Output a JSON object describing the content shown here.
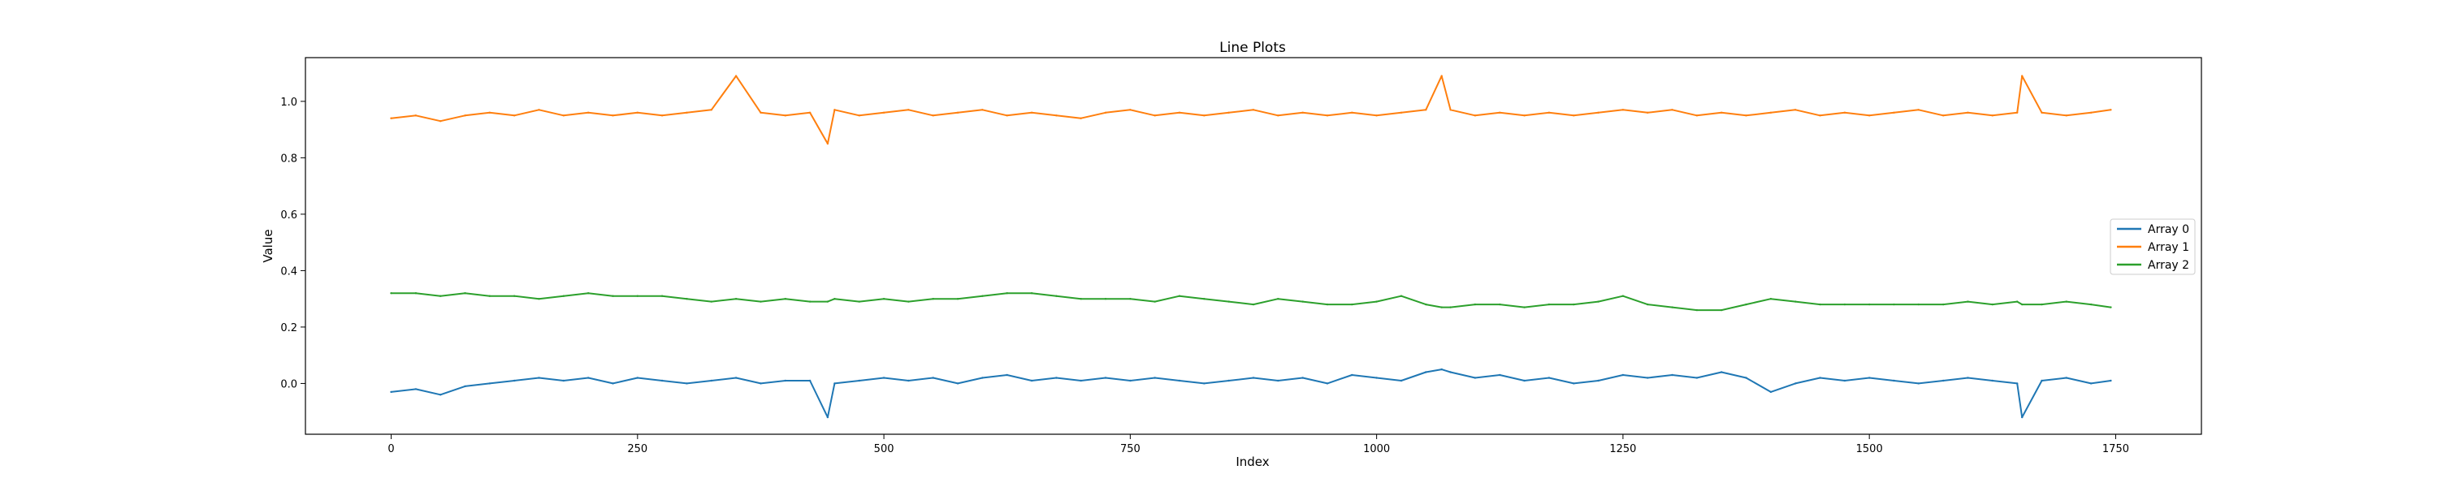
{
  "chart_data": {
    "type": "line",
    "title": "Line Plots",
    "xlabel": "Index",
    "ylabel": "Value",
    "xlim": [
      -87,
      1837
    ],
    "ylim": [
      -0.18,
      1.155
    ],
    "x_ticks": [
      0,
      250,
      500,
      750,
      1000,
      1250,
      1500,
      1750
    ],
    "x_tick_labels": [
      "0",
      "250",
      "500",
      "750",
      "1000",
      "1250",
      "1500",
      "1750"
    ],
    "y_ticks": [
      0.0,
      0.2,
      0.4,
      0.6,
      0.8,
      1.0
    ],
    "y_tick_labels": [
      "0.0",
      "0.2",
      "0.4",
      "0.6",
      "0.8",
      "1.0"
    ],
    "grid": false,
    "legend_position": "center-right",
    "x": [
      0,
      25,
      50,
      75,
      100,
      125,
      150,
      175,
      200,
      225,
      250,
      275,
      300,
      325,
      350,
      375,
      400,
      425,
      443,
      450,
      475,
      500,
      525,
      550,
      575,
      600,
      625,
      650,
      675,
      700,
      725,
      750,
      775,
      800,
      825,
      850,
      875,
      900,
      925,
      950,
      975,
      1000,
      1025,
      1050,
      1066,
      1075,
      1100,
      1125,
      1150,
      1175,
      1200,
      1225,
      1250,
      1275,
      1300,
      1325,
      1350,
      1375,
      1400,
      1425,
      1450,
      1475,
      1500,
      1525,
      1550,
      1575,
      1600,
      1625,
      1650,
      1655,
      1675,
      1700,
      1725,
      1745
    ],
    "series": [
      {
        "name": "Array 0",
        "color": "#1f77b4",
        "values": [
          -0.03,
          -0.02,
          -0.04,
          -0.01,
          0.0,
          0.01,
          0.02,
          0.01,
          0.02,
          0.0,
          0.02,
          0.01,
          0.0,
          0.01,
          0.02,
          0.0,
          0.01,
          0.01,
          -0.12,
          0.0,
          0.01,
          0.02,
          0.01,
          0.02,
          0.0,
          0.02,
          0.03,
          0.01,
          0.02,
          0.01,
          0.02,
          0.01,
          0.02,
          0.01,
          0.0,
          0.01,
          0.02,
          0.01,
          0.02,
          0.0,
          0.03,
          0.02,
          0.01,
          0.04,
          0.05,
          0.04,
          0.02,
          0.03,
          0.01,
          0.02,
          0.0,
          0.01,
          0.03,
          0.02,
          0.03,
          0.02,
          0.04,
          0.02,
          -0.03,
          0.0,
          0.02,
          0.01,
          0.02,
          0.01,
          0.0,
          0.01,
          0.02,
          0.01,
          0.0,
          -0.12,
          0.01,
          0.02,
          0.0,
          0.01
        ]
      },
      {
        "name": "Array 1",
        "color": "#ff7f0e",
        "values": [
          0.94,
          0.95,
          0.93,
          0.95,
          0.96,
          0.95,
          0.97,
          0.95,
          0.96,
          0.95,
          0.96,
          0.95,
          0.96,
          0.97,
          1.09,
          0.96,
          0.95,
          0.96,
          0.85,
          0.97,
          0.95,
          0.96,
          0.97,
          0.95,
          0.96,
          0.97,
          0.95,
          0.96,
          0.95,
          0.94,
          0.96,
          0.97,
          0.95,
          0.96,
          0.95,
          0.96,
          0.97,
          0.95,
          0.96,
          0.95,
          0.96,
          0.95,
          0.96,
          0.97,
          1.09,
          0.97,
          0.95,
          0.96,
          0.95,
          0.96,
          0.95,
          0.96,
          0.97,
          0.96,
          0.97,
          0.95,
          0.96,
          0.95,
          0.96,
          0.97,
          0.95,
          0.96,
          0.95,
          0.96,
          0.97,
          0.95,
          0.96,
          0.95,
          0.96,
          1.09,
          0.96,
          0.95,
          0.96,
          0.97
        ]
      },
      {
        "name": "Array 2",
        "color": "#2ca02c",
        "values": [
          0.32,
          0.32,
          0.31,
          0.32,
          0.31,
          0.31,
          0.3,
          0.31,
          0.32,
          0.31,
          0.31,
          0.31,
          0.3,
          0.29,
          0.3,
          0.29,
          0.3,
          0.29,
          0.29,
          0.3,
          0.29,
          0.3,
          0.29,
          0.3,
          0.3,
          0.31,
          0.32,
          0.32,
          0.31,
          0.3,
          0.3,
          0.3,
          0.29,
          0.31,
          0.3,
          0.29,
          0.28,
          0.3,
          0.29,
          0.28,
          0.28,
          0.29,
          0.31,
          0.28,
          0.27,
          0.27,
          0.28,
          0.28,
          0.27,
          0.28,
          0.28,
          0.29,
          0.31,
          0.28,
          0.27,
          0.26,
          0.26,
          0.28,
          0.3,
          0.29,
          0.28,
          0.28,
          0.28,
          0.28,
          0.28,
          0.28,
          0.29,
          0.28,
          0.29,
          0.28,
          0.28,
          0.29,
          0.28,
          0.27
        ]
      }
    ]
  }
}
